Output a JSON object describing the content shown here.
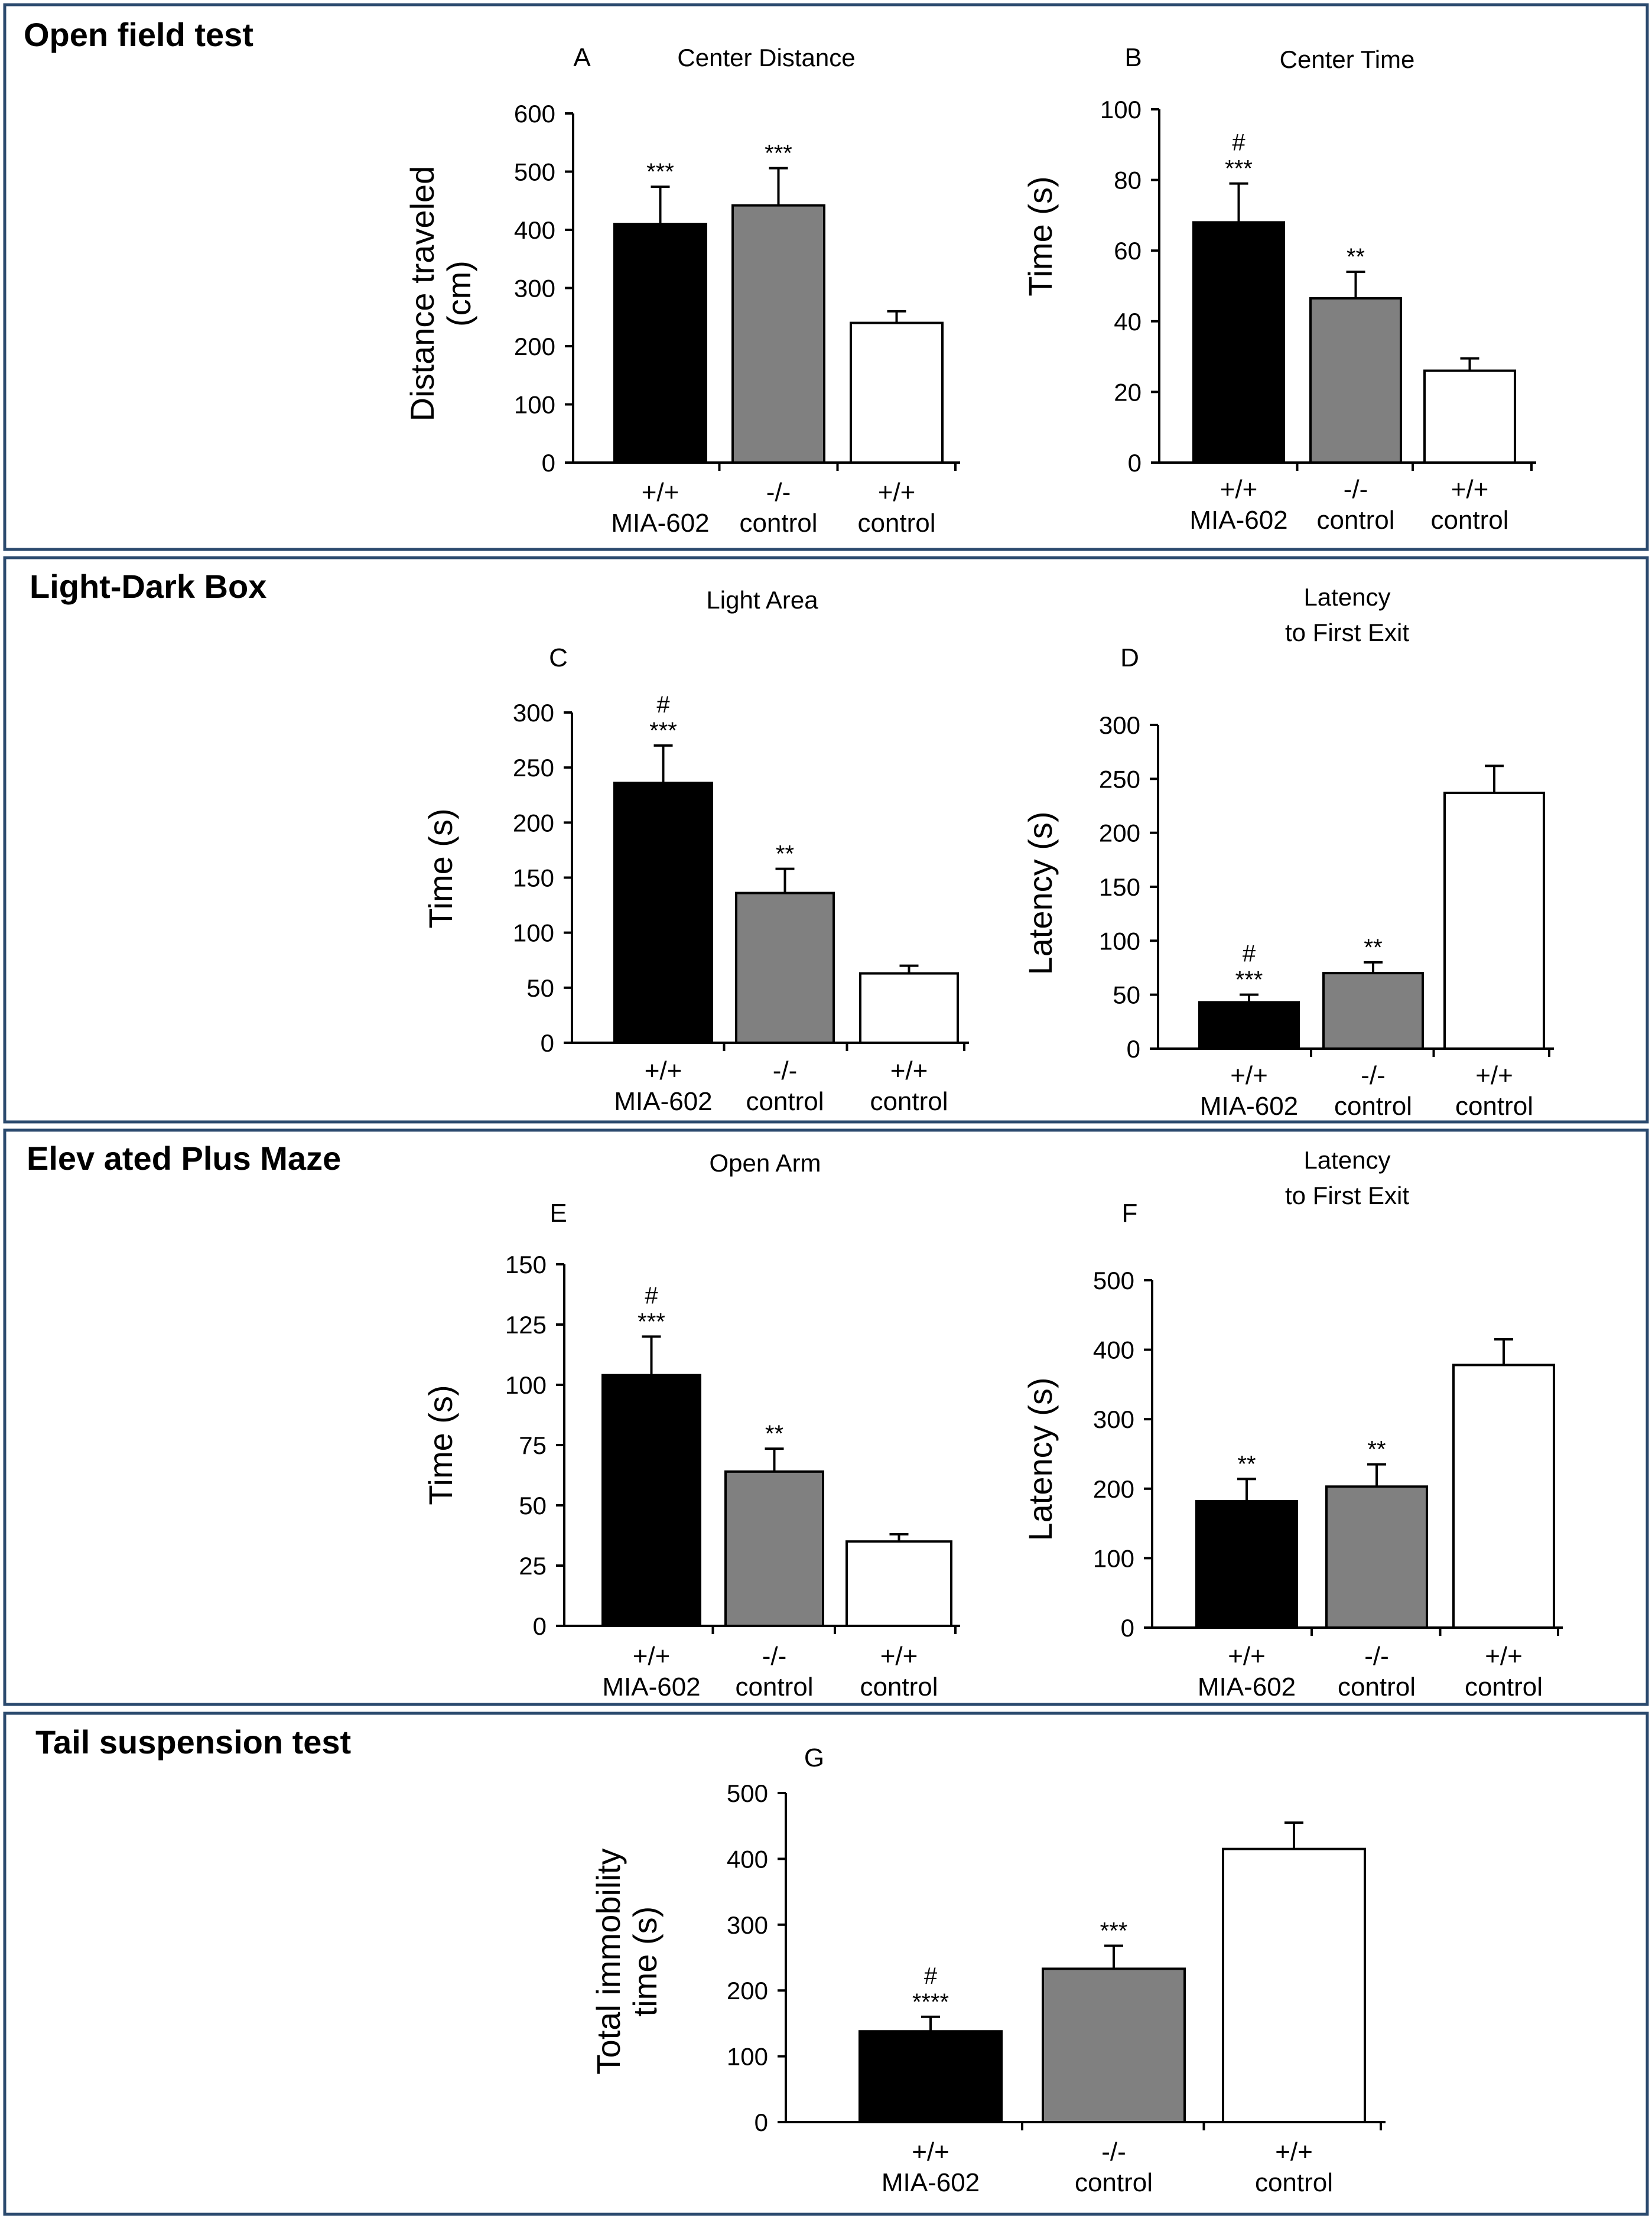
{
  "sections": [
    {
      "title": "Open field test"
    },
    {
      "title": "Light-Dark Box"
    },
    {
      "title": "Elev ated Plus Maze"
    },
    {
      "title": "Tail suspension test"
    }
  ],
  "colors": {
    "black": "#000000",
    "gray": "#808080",
    "white": "#ffffff",
    "frame": "#2b4a6e"
  },
  "chart_data": [
    {
      "type": "bar",
      "panel": "A",
      "title": [
        "Center Distance"
      ],
      "ylabel": [
        "Distance traveled",
        "(cm)"
      ],
      "ylim": [
        0,
        600
      ],
      "yticks": [
        "0",
        "100",
        "200",
        "300",
        "400",
        "500",
        "600"
      ],
      "categories": [
        [
          "+/+",
          "MIA-602"
        ],
        [
          "-/-",
          "control"
        ],
        [
          "+/+",
          "control"
        ]
      ],
      "values": [
        410,
        442,
        240
      ],
      "errors": [
        64,
        64,
        20
      ],
      "annotations": [
        [
          "***"
        ],
        [
          "***"
        ],
        []
      ],
      "bar_colors": [
        "black",
        "gray",
        "white"
      ]
    },
    {
      "type": "bar",
      "panel": "B",
      "title": [
        "Center Time"
      ],
      "ylabel": [
        "Time (s)"
      ],
      "ylim": [
        0,
        100
      ],
      "yticks": [
        "0",
        "20",
        "40",
        "60",
        "80",
        "100"
      ],
      "categories": [
        [
          "+/+",
          "MIA-602"
        ],
        [
          "-/-",
          "control"
        ],
        [
          "+/+",
          "control"
        ]
      ],
      "values": [
        68,
        46.5,
        26
      ],
      "errors": [
        11,
        7.5,
        3.5
      ],
      "annotations": [
        [
          "#",
          "***"
        ],
        [
          "**"
        ],
        []
      ],
      "bar_colors": [
        "black",
        "gray",
        "white"
      ]
    },
    {
      "type": "bar",
      "panel": "C",
      "title": [
        "Light Area"
      ],
      "ylabel": [
        "Time (s)"
      ],
      "ylim": [
        0,
        300
      ],
      "yticks": [
        "0",
        "50",
        "100",
        "150",
        "200",
        "250",
        "300"
      ],
      "categories": [
        [
          "+/+",
          "MIA-602"
        ],
        [
          "-/-",
          "control"
        ],
        [
          "+/+",
          "control"
        ]
      ],
      "values": [
        236,
        136,
        63
      ],
      "errors": [
        34,
        22,
        7
      ],
      "annotations": [
        [
          "#",
          "***"
        ],
        [
          "**"
        ],
        []
      ],
      "bar_colors": [
        "black",
        "gray",
        "white"
      ]
    },
    {
      "type": "bar",
      "panel": "D",
      "title": [
        "Latency",
        "to First Exit"
      ],
      "ylabel": [
        "Latency (s)"
      ],
      "ylim": [
        0,
        300
      ],
      "yticks": [
        "0",
        "50",
        "100",
        "150",
        "200",
        "250",
        "300"
      ],
      "categories": [
        [
          "+/+",
          "MIA-602"
        ],
        [
          "-/-",
          "control"
        ],
        [
          "+/+",
          "control"
        ]
      ],
      "values": [
        43,
        70,
        237
      ],
      "errors": [
        7,
        10,
        25
      ],
      "annotations": [
        [
          "#",
          "***"
        ],
        [
          "**"
        ],
        []
      ],
      "bar_colors": [
        "black",
        "gray",
        "white"
      ]
    },
    {
      "type": "bar",
      "panel": "E",
      "title": [
        "Open Arm"
      ],
      "ylabel": [
        "Time (s)"
      ],
      "ylim": [
        0,
        150
      ],
      "yticks": [
        "0",
        "25",
        "50",
        "75",
        "100",
        "125",
        "150"
      ],
      "categories": [
        [
          "+/+",
          "MIA-602"
        ],
        [
          "-/-",
          "control"
        ],
        [
          "+/+",
          "control"
        ]
      ],
      "values": [
        104,
        64,
        35
      ],
      "errors": [
        16,
        9.5,
        3
      ],
      "annotations": [
        [
          "#",
          "***"
        ],
        [
          "**"
        ],
        []
      ],
      "bar_colors": [
        "black",
        "gray",
        "white"
      ]
    },
    {
      "type": "bar",
      "panel": "F",
      "title": [
        "Latency",
        "to First Exit"
      ],
      "ylabel": [
        "Latency (s)"
      ],
      "ylim": [
        0,
        500
      ],
      "yticks": [
        "0",
        "100",
        "200",
        "300",
        "400",
        "500"
      ],
      "categories": [
        [
          "+/+",
          "MIA-602"
        ],
        [
          "-/-",
          "control"
        ],
        [
          "+/+",
          "control"
        ]
      ],
      "values": [
        182,
        203,
        378
      ],
      "errors": [
        32,
        32,
        37
      ],
      "annotations": [
        [
          "**"
        ],
        [
          "**"
        ],
        []
      ],
      "bar_colors": [
        "black",
        "gray",
        "white"
      ]
    },
    {
      "type": "bar",
      "panel": "G",
      "title": [],
      "ylabel": [
        "Total immobility",
        "time (s)"
      ],
      "ylim": [
        0,
        500
      ],
      "yticks": [
        "0",
        "100",
        "200",
        "300",
        "400",
        "500"
      ],
      "categories": [
        [
          "+/+",
          "MIA-602"
        ],
        [
          "-/-",
          "control"
        ],
        [
          "+/+",
          "control"
        ]
      ],
      "values": [
        138,
        233,
        415
      ],
      "errors": [
        22,
        35,
        40
      ],
      "annotations": [
        [
          "#",
          "****"
        ],
        [
          "***"
        ],
        []
      ],
      "bar_colors": [
        "black",
        "gray",
        "white"
      ]
    }
  ]
}
